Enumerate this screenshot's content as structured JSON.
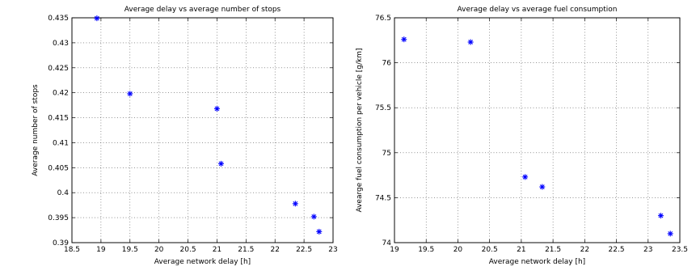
{
  "chart_data": [
    {
      "type": "scatter",
      "title": "Average delay vs average number of stops",
      "xlabel": "Average network delay [h]",
      "ylabel": "Average number of stops",
      "xlim": [
        18.5,
        23
      ],
      "ylim": [
        0.39,
        0.435
      ],
      "xticks": [
        18.5,
        19,
        19.5,
        20,
        20.5,
        21,
        21.5,
        22,
        22.5,
        23
      ],
      "yticks": [
        0.39,
        0.395,
        0.4,
        0.405,
        0.41,
        0.415,
        0.42,
        0.425,
        0.43,
        0.435
      ],
      "xticklabels": [
        "18.5",
        "19",
        "19.5",
        "20",
        "20.5",
        "21",
        "21.5",
        "22",
        "22.5",
        "23"
      ],
      "yticklabels": [
        "0.39",
        "0.395",
        "0.4",
        "0.405",
        "0.41",
        "0.415",
        "0.42",
        "0.425",
        "0.43",
        "0.435"
      ],
      "grid": true,
      "marker_color": "#0000ff",
      "points": [
        {
          "x": 18.93,
          "y": 0.4349
        },
        {
          "x": 19.5,
          "y": 0.4198
        },
        {
          "x": 21.0,
          "y": 0.4168
        },
        {
          "x": 21.07,
          "y": 0.4058
        },
        {
          "x": 22.35,
          "y": 0.3978
        },
        {
          "x": 22.67,
          "y": 0.3952
        },
        {
          "x": 22.76,
          "y": 0.3922
        }
      ]
    },
    {
      "type": "scatter",
      "title": "Average delay vs average fuel consumption",
      "xlabel": "Average network delay [h]",
      "ylabel": "Avearge fuel consumption per vehicle [g/km]",
      "xlim": [
        19,
        23.5
      ],
      "ylim": [
        74,
        76.5
      ],
      "xticks": [
        19,
        19.5,
        20,
        20.5,
        21,
        21.5,
        22,
        22.5,
        23,
        23.5
      ],
      "yticks": [
        74,
        74.5,
        75,
        75.5,
        76,
        76.5
      ],
      "xticklabels": [
        "19",
        "19.5",
        "20",
        "20.5",
        "21",
        "21.5",
        "22",
        "22.5",
        "23",
        "23.5"
      ],
      "yticklabels": [
        "74",
        "74.5",
        "75",
        "75.5",
        "76",
        "76.5"
      ],
      "grid": true,
      "marker_color": "#0000ff",
      "points": [
        {
          "x": 19.15,
          "y": 76.26
        },
        {
          "x": 20.2,
          "y": 76.23
        },
        {
          "x": 21.06,
          "y": 74.73
        },
        {
          "x": 21.33,
          "y": 74.62
        },
        {
          "x": 23.2,
          "y": 74.3
        },
        {
          "x": 23.35,
          "y": 74.1
        }
      ]
    }
  ]
}
